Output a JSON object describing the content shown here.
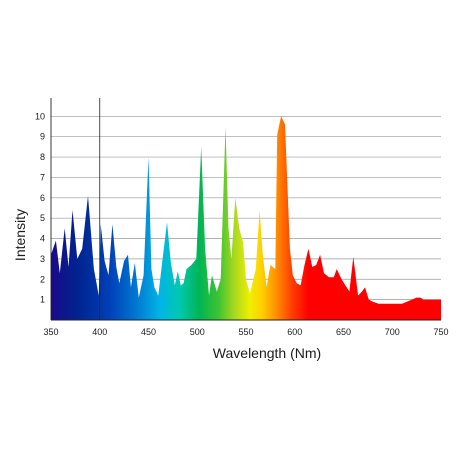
{
  "chart_data": {
    "type": "area",
    "title": "",
    "xlabel": "Wavelength (Nm)",
    "ylabel": "Intensity",
    "xlim": [
      350,
      750
    ],
    "ylim": [
      0,
      10.9
    ],
    "x_ticks": [
      350,
      400,
      450,
      500,
      550,
      600,
      650,
      700,
      750
    ],
    "y_ticks": [
      1,
      2,
      3,
      4,
      5,
      6,
      7,
      8,
      9,
      10
    ],
    "grid": "horizontal",
    "reference_line_x": 400,
    "fill": "spectral color gradient from violet (350) to red (750)",
    "series": [
      {
        "points": [
          [
            350,
            3.2
          ],
          [
            355,
            3.9
          ],
          [
            359,
            2.3
          ],
          [
            364,
            4.5
          ],
          [
            368,
            2.6
          ],
          [
            372,
            5.4
          ],
          [
            377,
            3.0
          ],
          [
            382,
            3.5
          ],
          [
            388,
            6.1
          ],
          [
            394,
            2.5
          ],
          [
            399,
            1.2
          ],
          [
            401,
            4.7
          ],
          [
            405,
            2.9
          ],
          [
            409,
            2.2
          ],
          [
            413,
            4.7
          ],
          [
            417,
            2.6
          ],
          [
            420,
            1.8
          ],
          [
            425,
            2.9
          ],
          [
            429,
            3.2
          ],
          [
            432,
            1.6
          ],
          [
            436,
            2.8
          ],
          [
            440,
            1.1
          ],
          [
            445,
            2.2
          ],
          [
            450,
            8.0
          ],
          [
            453,
            2.5
          ],
          [
            456,
            1.6
          ],
          [
            460,
            1.2
          ],
          [
            464,
            2.8
          ],
          [
            469,
            4.8
          ],
          [
            473,
            2.8
          ],
          [
            477,
            1.7
          ],
          [
            480,
            2.4
          ],
          [
            483,
            1.7
          ],
          [
            486,
            1.8
          ],
          [
            489,
            2.5
          ],
          [
            494,
            2.7
          ],
          [
            499,
            3.0
          ],
          [
            504,
            8.5
          ],
          [
            508,
            3.5
          ],
          [
            512,
            1.2
          ],
          [
            515,
            2.2
          ],
          [
            520,
            1.4
          ],
          [
            524,
            2.0
          ],
          [
            529,
            9.5
          ],
          [
            532,
            4.5
          ],
          [
            535,
            3.0
          ],
          [
            539,
            6.0
          ],
          [
            543,
            4.5
          ],
          [
            547,
            3.8
          ],
          [
            550,
            2.0
          ],
          [
            554,
            1.3
          ],
          [
            560,
            2.5
          ],
          [
            564,
            5.4
          ],
          [
            567,
            3.3
          ],
          [
            571,
            1.6
          ],
          [
            575,
            2.7
          ],
          [
            580,
            2.5
          ],
          [
            582,
            9.1
          ],
          [
            586,
            10.0
          ],
          [
            590,
            9.6
          ],
          [
            595,
            3.5
          ],
          [
            598,
            2.2
          ],
          [
            602,
            1.8
          ],
          [
            606,
            1.7
          ],
          [
            610,
            2.7
          ],
          [
            614,
            3.5
          ],
          [
            618,
            2.6
          ],
          [
            622,
            2.7
          ],
          [
            626,
            3.2
          ],
          [
            630,
            2.3
          ],
          [
            635,
            2.1
          ],
          [
            640,
            2.1
          ],
          [
            643,
            2.5
          ],
          [
            648,
            2.0
          ],
          [
            652,
            1.7
          ],
          [
            656,
            1.4
          ],
          [
            660,
            3.1
          ],
          [
            665,
            1.2
          ],
          [
            669,
            1.4
          ],
          [
            672,
            1.6
          ],
          [
            676,
            1.0
          ],
          [
            680,
            0.9
          ],
          [
            686,
            0.8
          ],
          [
            695,
            0.8
          ],
          [
            700,
            0.8
          ],
          [
            710,
            0.8
          ],
          [
            715,
            0.9
          ],
          [
            720,
            1.0
          ],
          [
            725,
            1.1
          ],
          [
            729,
            1.1
          ],
          [
            732,
            1.0
          ],
          [
            750,
            1.0
          ]
        ]
      }
    ]
  }
}
